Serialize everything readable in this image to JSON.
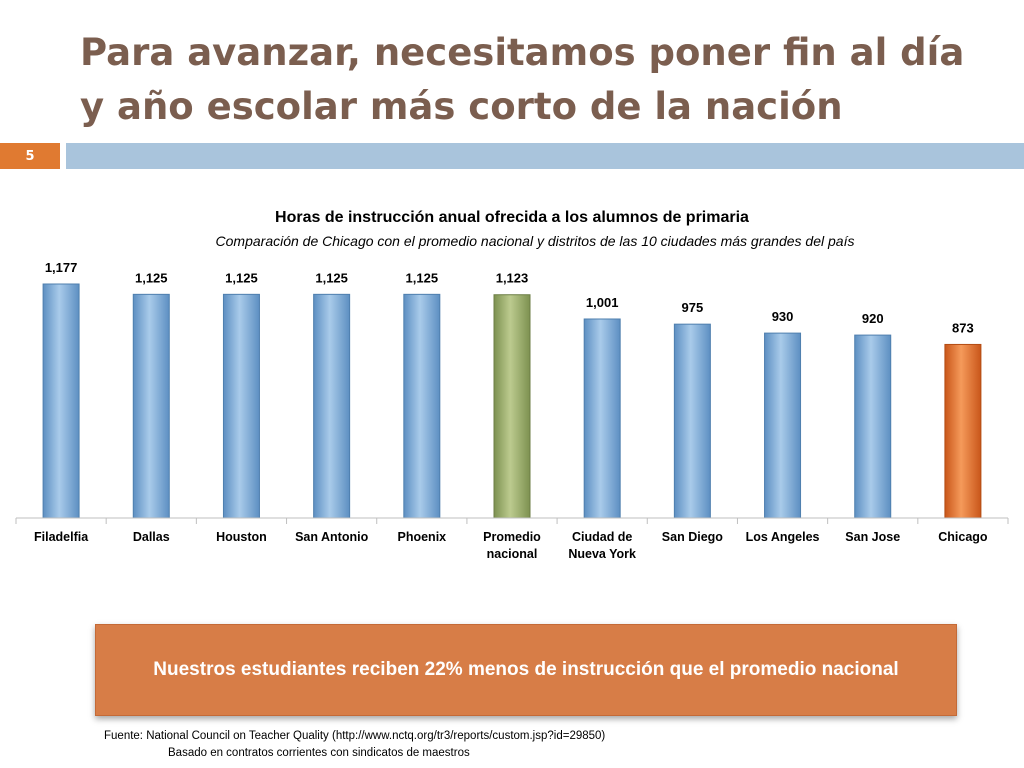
{
  "slide": {
    "title": "Para avanzar, necesitamos poner fin al día y año escolar más corto de la nación",
    "page_number": "5"
  },
  "chart_data": {
    "type": "bar",
    "title": "Horas de instrucción anual ofrecida a los alumnos de primaria",
    "subtitle": "Comparación de Chicago con el promedio nacional y distritos de las 10 ciudades más grandes del país",
    "categories": [
      "Filadelfia",
      "Dallas",
      "Houston",
      "San Antonio",
      "Phoenix",
      "Promedio nacional",
      "Ciudad de Nueva York",
      "San Diego",
      "Los Angeles",
      "San Jose",
      "Chicago"
    ],
    "category_lines": [
      [
        "Filadelfia"
      ],
      [
        "Dallas"
      ],
      [
        "Houston"
      ],
      [
        "San Antonio"
      ],
      [
        "Phoenix"
      ],
      [
        "Promedio",
        "nacional"
      ],
      [
        "Ciudad de",
        "Nueva York"
      ],
      [
        "San Diego"
      ],
      [
        "Los Angeles"
      ],
      [
        "San Jose"
      ],
      [
        "Chicago"
      ]
    ],
    "values": [
      1177,
      1125,
      1125,
      1125,
      1125,
      1123,
      1001,
      975,
      930,
      920,
      873
    ],
    "value_labels": [
      "1,177",
      "1,125",
      "1,125",
      "1,125",
      "1,125",
      "1,123",
      "1,001",
      "975",
      "930",
      "920",
      "873"
    ],
    "ylim": [
      0,
      1177
    ],
    "grid": false,
    "colors": {
      "default": "#8db4d9",
      "highlight_national": "#a6b574",
      "highlight_chicago": "#e67734"
    }
  },
  "banner": {
    "text": "Nuestros estudiantes reciben 22% menos de instrucción que el promedio nacional"
  },
  "source": {
    "line1": "Fuente:  National Council on Teacher Quality (http://www.nctq.org/tr3/reports/custom.jsp?id=29850)",
    "line2": "Basado en contratos corrientes con sindicatos de maestros"
  }
}
